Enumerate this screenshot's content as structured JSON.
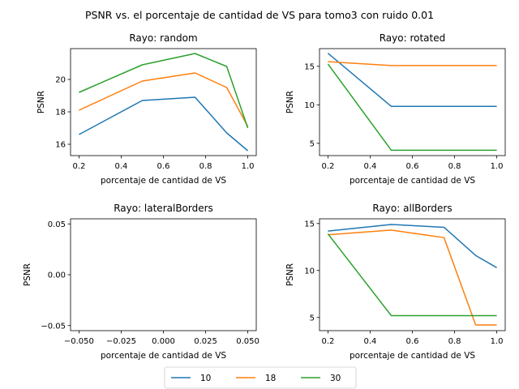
{
  "figure": {
    "title": "PSNR vs. el porcentaje de cantidad de VS para tomo3 con ruido 0.01",
    "colors": [
      "#1f77b4",
      "#ff7f0e",
      "#2ca02c"
    ],
    "legend": {
      "placement": "bottom-center",
      "entries": [
        "10",
        "18",
        "30"
      ]
    }
  },
  "chart_data": [
    {
      "type": "line",
      "title": "Rayo: random",
      "xlabel": "porcentaje de cantidad de VS",
      "ylabel": "PSNR",
      "xlim": [
        0.16,
        1.04
      ],
      "ylim": [
        15.3,
        21.9
      ],
      "xticks": [
        0.2,
        0.4,
        0.6,
        0.8,
        1.0
      ],
      "xtick_labels": [
        "0.2",
        "0.4",
        "0.6",
        "0.8",
        "1.0"
      ],
      "yticks": [
        16,
        18,
        20
      ],
      "ytick_labels": [
        "16",
        "18",
        "20"
      ],
      "x": [
        0.2,
        0.5,
        0.75,
        0.9,
        1.0
      ],
      "series": [
        {
          "name": "10",
          "values": [
            16.6,
            18.7,
            18.9,
            16.7,
            15.6
          ]
        },
        {
          "name": "18",
          "values": [
            18.1,
            19.9,
            20.4,
            19.5,
            17.1
          ]
        },
        {
          "name": "30",
          "values": [
            19.2,
            20.9,
            21.6,
            20.8,
            17.0
          ]
        }
      ]
    },
    {
      "type": "line",
      "title": "Rayo: rotated",
      "xlabel": "porcentaje de cantidad de VS",
      "ylabel": "PSNR",
      "xlim": [
        0.16,
        1.04
      ],
      "ylim": [
        3.4,
        17.3
      ],
      "xticks": [
        0.2,
        0.4,
        0.6,
        0.8,
        1.0
      ],
      "xtick_labels": [
        "0.2",
        "0.4",
        "0.6",
        "0.8",
        "1.0"
      ],
      "yticks": [
        5,
        10,
        15
      ],
      "ytick_labels": [
        "5",
        "10",
        "15"
      ],
      "x": [
        0.2,
        0.5,
        0.75,
        0.9,
        1.0
      ],
      "series": [
        {
          "name": "10",
          "values": [
            16.7,
            9.8,
            9.8,
            9.8,
            9.8
          ]
        },
        {
          "name": "18",
          "values": [
            15.6,
            15.1,
            15.1,
            15.1,
            15.1
          ]
        },
        {
          "name": "30",
          "values": [
            15.3,
            4.1,
            4.1,
            4.1,
            4.1
          ]
        }
      ]
    },
    {
      "type": "line",
      "title": "Rayo: lateralBorders",
      "xlabel": "porcentaje de cantidad de VS",
      "ylabel": "PSNR",
      "xlim": [
        -0.055,
        0.055
      ],
      "ylim": [
        -0.055,
        0.055
      ],
      "xticks": [
        -0.05,
        -0.025,
        0.0,
        0.025,
        0.05
      ],
      "xtick_labels": [
        "−0.050",
        "−0.025",
        "0.000",
        "0.025",
        "0.050"
      ],
      "yticks": [
        -0.05,
        0.0,
        0.05
      ],
      "ytick_labels": [
        "−0.05",
        "0.00",
        "0.05"
      ],
      "x": [],
      "series": []
    },
    {
      "type": "line",
      "title": "Rayo: allBorders",
      "xlabel": "porcentaje de cantidad de VS",
      "ylabel": "PSNR",
      "xlim": [
        0.16,
        1.04
      ],
      "ylim": [
        3.6,
        15.5
      ],
      "xticks": [
        0.2,
        0.4,
        0.6,
        0.8,
        1.0
      ],
      "xtick_labels": [
        "0.2",
        "0.4",
        "0.6",
        "0.8",
        "1.0"
      ],
      "yticks": [
        5,
        10,
        15
      ],
      "ytick_labels": [
        "5",
        "10",
        "15"
      ],
      "x": [
        0.2,
        0.5,
        0.75,
        0.9,
        1.0
      ],
      "series": [
        {
          "name": "10",
          "values": [
            14.2,
            14.9,
            14.6,
            11.6,
            10.3
          ]
        },
        {
          "name": "18",
          "values": [
            13.8,
            14.3,
            13.5,
            4.2,
            4.2
          ]
        },
        {
          "name": "30",
          "values": [
            13.9,
            5.2,
            5.2,
            5.2,
            5.2
          ]
        }
      ]
    }
  ]
}
